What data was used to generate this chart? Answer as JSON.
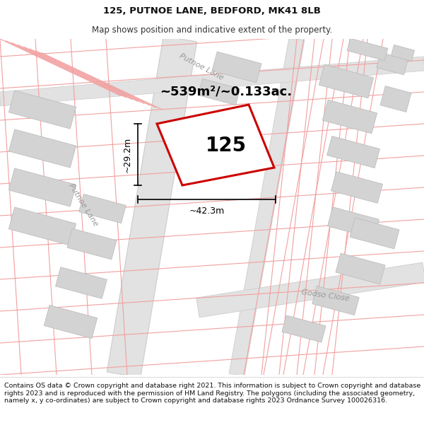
{
  "title": "125, PUTNOE LANE, BEDFORD, MK41 8LB",
  "subtitle": "Map shows position and indicative extent of the property.",
  "footer": "Contains OS data © Crown copyright and database right 2021. This information is subject to Crown copyright and database rights 2023 and is reproduced with the permission of HM Land Registry. The polygons (including the associated geometry, namely x, y co-ordinates) are subject to Crown copyright and database rights 2023 Ordnance Survey 100026316.",
  "map_bg": "#f7f7f7",
  "header_bg": "#ffffff",
  "footer_bg": "#ffffff",
  "road_color": "#e2e2e2",
  "road_border": "#cccccc",
  "building_color": "#d3d3d3",
  "building_border": "#b8b8b8",
  "pink_line_color": "#f2a0a0",
  "red_outline_color": "#cc0000",
  "dim_line_color": "#000000",
  "label_color": "#000000",
  "street_label_color": "#999999",
  "area_label": "~539m²/~0.133ac.",
  "number_label": "125",
  "dim_width_label": "~42.3m",
  "dim_height_label": "~29.2m",
  "street1_label": "Putnoe Lane",
  "street2_label": "Putnoe Lane",
  "street3_label": "Godso Close",
  "title_fontsize": 9.5,
  "subtitle_fontsize": 8.5,
  "footer_fontsize": 6.8,
  "area_fontsize": 13,
  "number_fontsize": 20,
  "dim_fontsize": 9,
  "street_fontsize": 8
}
